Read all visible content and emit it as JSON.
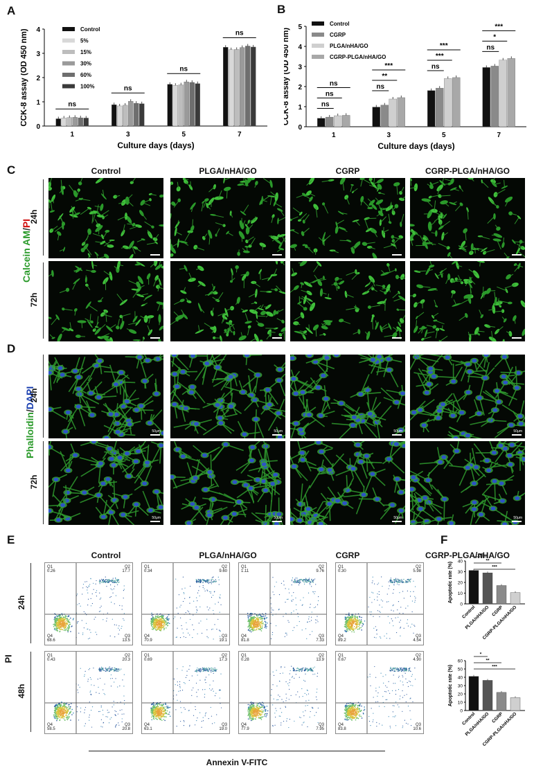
{
  "panels": {
    "A": "A",
    "B": "B",
    "C": "C",
    "D": "D",
    "E": "E",
    "F": "F"
  },
  "chartA": {
    "type": "bar",
    "ylabel": "CCK-8 assay (OD 450 nm)",
    "xlabel": "Culture days  (days)",
    "categories": [
      "1",
      "3",
      "5",
      "7"
    ],
    "ylim": [
      0,
      4
    ],
    "yticks": [
      "0",
      "1",
      "2",
      "3",
      "4"
    ],
    "series": [
      {
        "name": "Control",
        "color": "#111111",
        "values": [
          0.3,
          0.88,
          1.72,
          3.25
        ]
      },
      {
        "name": "5%",
        "color": "#d8d8d8",
        "values": [
          0.33,
          0.83,
          1.68,
          3.15
        ]
      },
      {
        "name": "15%",
        "color": "#bdbdbd",
        "values": [
          0.35,
          0.86,
          1.7,
          3.16
        ]
      },
      {
        "name": "30%",
        "color": "#9a9a9a",
        "values": [
          0.36,
          1.02,
          1.82,
          3.24
        ]
      },
      {
        "name": "60%",
        "color": "#6e6e6e",
        "values": [
          0.34,
          0.94,
          1.8,
          3.3
        ]
      },
      {
        "name": "100%",
        "color": "#3a3a3a",
        "values": [
          0.33,
          0.92,
          1.75,
          3.26
        ]
      }
    ],
    "annotations": [
      "ns",
      "ns",
      "ns",
      "ns"
    ]
  },
  "chartB": {
    "type": "bar",
    "ylabel": "CCK-8 assay (OD 450 nm)",
    "xlabel": "Culture days  (days)",
    "categories": [
      "1",
      "3",
      "5",
      "7"
    ],
    "ylim": [
      0,
      5
    ],
    "yticks": [
      "0",
      "1",
      "2",
      "3",
      "4",
      "5"
    ],
    "series": [
      {
        "name": "Control",
        "color": "#111111",
        "values": [
          0.42,
          0.98,
          1.8,
          2.95
        ]
      },
      {
        "name": "CGRP",
        "color": "#8a8a8a",
        "values": [
          0.48,
          1.08,
          1.92,
          3.02
        ]
      },
      {
        "name": "PLGA/nHA/GO",
        "color": "#cfcfcf",
        "values": [
          0.55,
          1.38,
          2.4,
          3.32
        ]
      },
      {
        "name": "CGRP-PLGA/nHA/GO",
        "color": "#a8a8a8",
        "values": [
          0.57,
          1.45,
          2.45,
          3.4
        ]
      }
    ],
    "annotations": [
      [
        "ns",
        "ns",
        "ns"
      ],
      [
        "ns",
        "**",
        "***"
      ],
      [
        "ns",
        "***",
        "***"
      ],
      [
        "ns",
        "*",
        "***"
      ]
    ]
  },
  "columns": [
    "Control",
    "PLGA/nHA/GO",
    "CGRP",
    "CGRP-PLGA/nHA/GO"
  ],
  "columnsE": [
    "Control",
    "PLGA/nHA/GO",
    "CGRP",
    "CGRP-PLGA/nHA/GO"
  ],
  "stainC": {
    "a": "Calcein ",
    "b": "AM",
    "c": "/",
    "d": "PI"
  },
  "stainD": {
    "a": "Phalloidin",
    "b": "/",
    "c": "DAPI"
  },
  "rowsC": [
    "24h",
    "72h"
  ],
  "rowsD": [
    "24h",
    "72h"
  ],
  "rowsE": [
    "24h",
    "48h"
  ],
  "scale": "50μm",
  "flow": {
    "yaxis": "PI",
    "xaxis": "Annexin V-FITC",
    "quadrants": [
      [
        {
          "q1": "Q1",
          "v1": "0.26",
          "q2": "Q2",
          "v2": "17.7",
          "q3": "Q3",
          "v3": "13.5",
          "q4": "Q4",
          "v4": "68.6"
        },
        {
          "q1": "Q1",
          "v1": "0.34",
          "q2": "Q2",
          "v2": "9.60",
          "q3": "Q3",
          "v3": "19.1",
          "q4": "Q4",
          "v4": "70.9"
        },
        {
          "q1": "Q1",
          "v1": "1.11",
          "q2": "Q2",
          "v2": "9.76",
          "q3": "Q3",
          "v3": "7.33",
          "q4": "Q4",
          "v4": "81.8"
        },
        {
          "q1": "Q1",
          "v1": "0.30",
          "q2": "Q2",
          "v2": "5.98",
          "q3": "Q3",
          "v3": "4.54",
          "q4": "Q4",
          "v4": "89.2"
        }
      ],
      [
        {
          "q1": "Q1",
          "v1": "0.43",
          "q2": "Q2",
          "v2": "20.3",
          "q3": "Q3",
          "v3": "20.8",
          "q4": "Q4",
          "v4": "58.5"
        },
        {
          "q1": "Q1",
          "v1": "0.69",
          "q2": "Q2",
          "v2": "17.3",
          "q3": "Q3",
          "v3": "19.0",
          "q4": "Q4",
          "v4": "63.1"
        },
        {
          "q1": "Q1",
          "v1": "0.28",
          "q2": "Q2",
          "v2": "13.9",
          "q3": "Q3",
          "v3": "7.95",
          "q4": "Q4",
          "v4": "77.9"
        },
        {
          "q1": "Q1",
          "v1": "0.67",
          "q2": "Q2",
          "v2": "4.90",
          "q3": "Q3",
          "v3": "10.6",
          "q4": "Q4",
          "v4": "83.8"
        }
      ]
    ]
  },
  "chartF": [
    {
      "type": "bar",
      "ylabel": "Apoptotic rate (%)",
      "ylim": [
        0,
        40
      ],
      "yticks": [
        "0",
        "10",
        "20",
        "30",
        "40"
      ],
      "categories": [
        "Control",
        "PLGA/nHA/GO",
        "CGRP",
        "CGRP-PLGA/nHA/GO"
      ],
      "values": [
        31.2,
        28.9,
        17.1,
        10.5
      ],
      "colors": [
        "#111111",
        "#555555",
        "#8a8a8a",
        "#cfcfcf"
      ],
      "annotations": [
        "ns",
        "**",
        "***"
      ]
    },
    {
      "type": "bar",
      "ylabel": "Apoptotic rate (%)",
      "ylim": [
        0,
        60
      ],
      "yticks": [
        "0",
        "10",
        "20",
        "30",
        "40",
        "50",
        "60"
      ],
      "categories": [
        "Control",
        "PLGA/nHA/GO",
        "CGRP",
        "CGRP-PLGA/nHA/GO"
      ],
      "values": [
        41.1,
        36.3,
        21.8,
        15.5
      ],
      "colors": [
        "#111111",
        "#555555",
        "#8a8a8a",
        "#cfcfcf"
      ],
      "annotations": [
        "*",
        "**",
        "***"
      ]
    }
  ]
}
